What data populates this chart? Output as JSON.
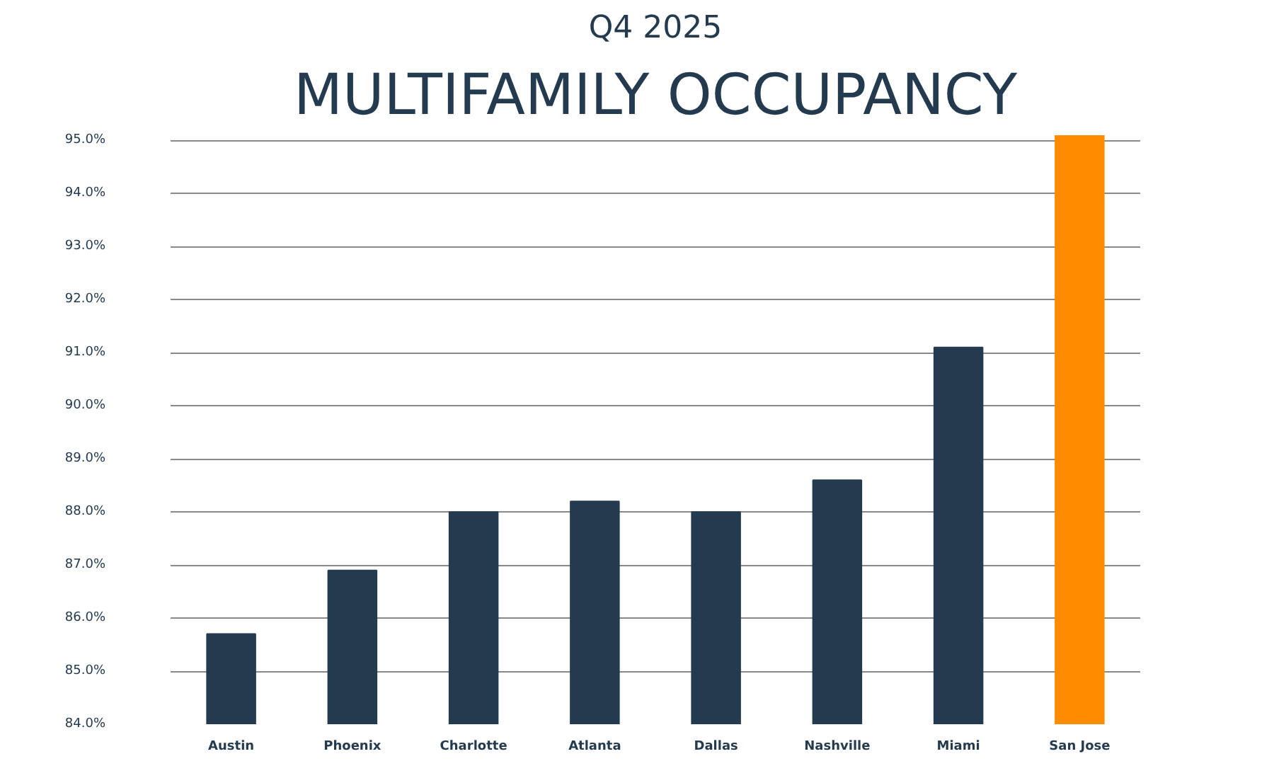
{
  "chart_data": {
    "type": "bar",
    "title": "MULTIFAMILY OCCUPANCY",
    "subtitle": "Q4 2025",
    "categories": [
      "Austin",
      "Phoenix",
      "Charlotte",
      "Atlanta",
      "Dallas",
      "Nashville",
      "Miami",
      "San Jose"
    ],
    "values": [
      85.7,
      86.9,
      88.0,
      88.2,
      88.0,
      88.6,
      91.1,
      95.1
    ],
    "colors": [
      "#243b4f",
      "#243b4f",
      "#243b4f",
      "#243b4f",
      "#243b4f",
      "#243b4f",
      "#243b4f",
      "#ff8c00"
    ],
    "ylim": [
      84,
      95.1
    ],
    "yticks": [
      {
        "value": 84,
        "label": "84.0%"
      },
      {
        "value": 85,
        "label": "85.0%"
      },
      {
        "value": 86,
        "label": "86.0%"
      },
      {
        "value": 87,
        "label": "87.0%"
      },
      {
        "value": 88,
        "label": "88.0%"
      },
      {
        "value": 89,
        "label": "89.0%"
      },
      {
        "value": 90,
        "label": "90.0%"
      },
      {
        "value": 91,
        "label": "91.0%"
      },
      {
        "value": 92,
        "label": "92.0%"
      },
      {
        "value": 93,
        "label": "93.0%"
      },
      {
        "value": 94,
        "label": "94.0%"
      },
      {
        "value": 95,
        "label": "95.0%"
      }
    ],
    "grid": "y"
  }
}
